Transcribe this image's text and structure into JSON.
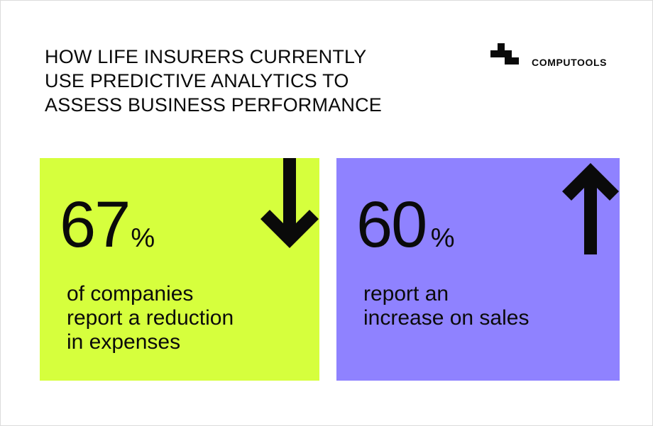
{
  "header": {
    "title_lines": [
      "HOW LIFE INSURERS CURRENTLY",
      "USE PREDICTIVE ANALYTICS TO",
      "ASSESS BUSINESS PERFORMANCE"
    ]
  },
  "brand": {
    "name": "COMPUTOOLS",
    "logo_icon": "computools-logo-icon"
  },
  "stats": [
    {
      "value": "67",
      "unit": "%",
      "description_lines": [
        "of companies",
        "report a reduction",
        "in expenses"
      ],
      "color": "#d6ff3d",
      "icon": "arrow-down-icon"
    },
    {
      "value": "60",
      "unit": "%",
      "description_lines": [
        "report an",
        "increase on sales"
      ],
      "color": "#8f82ff",
      "icon": "arrow-up-icon"
    }
  ],
  "colors": {
    "text": "#0a0a0a",
    "background": "#ffffff"
  }
}
